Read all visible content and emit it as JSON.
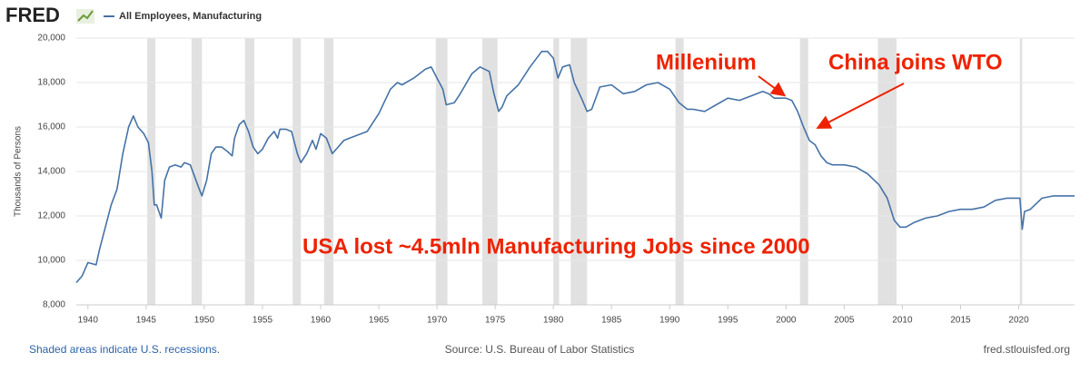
{
  "chart_data": {
    "type": "line",
    "logo": "FRED",
    "y_label": "Thousands of Persons",
    "annotations": [
      "Millenium",
      "China joins WTO",
      "USA lost ~4.5mln Manufacturing Jobs since 2000"
    ],
    "footer_left": "Shaded areas indicate U.S. recessions.",
    "footer_center": "Source: U.S. Bureau of Labor Statistics",
    "footer_right": "fred.stlouisfed.org",
    "xlim": [
      1939,
      2024.8
    ],
    "xticks": [
      1940,
      1945,
      1950,
      1955,
      1960,
      1965,
      1970,
      1975,
      1980,
      1985,
      1990,
      1995,
      2000,
      2005,
      2010,
      2015,
      2020
    ],
    "ylim": [
      8000,
      20000
    ],
    "yticks": [
      {
        "value": 8000,
        "label": "8,000"
      },
      {
        "value": 10000,
        "label": "10,000"
      },
      {
        "value": 12000,
        "label": "12,000"
      },
      {
        "value": 14000,
        "label": "14,000"
      },
      {
        "value": 16000,
        "label": "16,000"
      },
      {
        "value": 18000,
        "label": "18,000"
      },
      {
        "value": 20000,
        "label": "20,000"
      }
    ],
    "grid": true,
    "recession_color": "#e1e1e1",
    "recessions": [
      [
        1945.1,
        1945.8
      ],
      [
        1948.9,
        1949.8
      ],
      [
        1953.5,
        1954.3
      ],
      [
        1957.6,
        1958.3
      ],
      [
        1960.3,
        1961.1
      ],
      [
        1969.9,
        1970.9
      ],
      [
        1973.9,
        1975.2
      ],
      [
        1980.0,
        1980.5
      ],
      [
        1981.5,
        1982.9
      ],
      [
        1990.5,
        1991.2
      ],
      [
        2001.2,
        2001.9
      ],
      [
        2007.9,
        2009.5
      ],
      [
        2020.1,
        2020.3
      ]
    ],
    "x": [
      1939.0,
      1939.5,
      1940,
      1940.7,
      1941,
      1941.5,
      1942,
      1942.5,
      1943,
      1943.5,
      1943.9,
      1944.3,
      1944.8,
      1945.2,
      1945.5,
      1945.7,
      1945.9,
      1946.3,
      1946.6,
      1947,
      1947.5,
      1948,
      1948.3,
      1948.8,
      1949.5,
      1949.8,
      1950.2,
      1950.6,
      1951,
      1951.5,
      1952,
      1952.4,
      1952.6,
      1953,
      1953.4,
      1953.8,
      1954.2,
      1954.6,
      1955,
      1955.5,
      1956,
      1956.3,
      1956.5,
      1957,
      1957.5,
      1958,
      1958.3,
      1958.8,
      1959.3,
      1959.6,
      1960,
      1960.5,
      1961,
      1961.5,
      1962,
      1963,
      1964,
      1965,
      1966,
      1966.6,
      1967,
      1968,
      1969,
      1969.5,
      1970,
      1970.5,
      1970.8,
      1971.5,
      1972,
      1973,
      1973.7,
      1974.5,
      1974.9,
      1975.3,
      1975.6,
      1976,
      1977,
      1978,
      1979,
      1979.5,
      1980,
      1980.4,
      1980.8,
      1981.4,
      1981.8,
      1982.5,
      1982.9,
      1983.3,
      1984,
      1985,
      1986,
      1987,
      1988,
      1989,
      1990,
      1990.8,
      1991.5,
      1992,
      1993,
      1994,
      1995,
      1996,
      1997,
      1998,
      1998.5,
      1999,
      2000,
      2000.5,
      2001,
      2001.5,
      2002,
      2002.5,
      2003,
      2003.5,
      2004,
      2005,
      2006,
      2007,
      2008,
      2008.7,
      2009.3,
      2009.8,
      2010.3,
      2011,
      2012,
      2013,
      2014,
      2015,
      2016,
      2017,
      2018,
      2019,
      2020.1,
      2020.3,
      2020.5,
      2021,
      2022,
      2023,
      2024.8
    ],
    "series": [
      {
        "name": "All Employees, Manufacturing",
        "color": "#4572a7",
        "values": [
          9000,
          9300,
          9900,
          9800,
          10500,
          11500,
          12500,
          13200,
          14800,
          16000,
          16500,
          16000,
          15700,
          15300,
          14000,
          12500,
          12500,
          11900,
          13600,
          14200,
          14300,
          14200,
          14400,
          14300,
          13300,
          12900,
          13600,
          14800,
          15100,
          15100,
          14900,
          14700,
          15500,
          16100,
          16300,
          15800,
          15100,
          14800,
          15000,
          15500,
          15800,
          15500,
          15900,
          15900,
          15800,
          14800,
          14400,
          14800,
          15400,
          15000,
          15700,
          15500,
          14800,
          15100,
          15400,
          15600,
          15800,
          16600,
          17700,
          18000,
          17900,
          18200,
          18600,
          18700,
          18200,
          17700,
          17000,
          17100,
          17500,
          18400,
          18700,
          18500,
          17500,
          16700,
          16900,
          17400,
          17900,
          18700,
          19400,
          19400,
          19100,
          18200,
          18700,
          18800,
          18000,
          17200,
          16700,
          16800,
          17800,
          17900,
          17500,
          17600,
          17900,
          18000,
          17700,
          17100,
          16800,
          16800,
          16700,
          17000,
          17300,
          17200,
          17400,
          17600,
          17500,
          17300,
          17300,
          17200,
          16700,
          16000,
          15400,
          15200,
          14700,
          14400,
          14300,
          14300,
          14200,
          13900,
          13400,
          12800,
          11800,
          11500,
          11500,
          11700,
          11900,
          12000,
          12200,
          12300,
          12300,
          12400,
          12700,
          12800,
          12800,
          11400,
          12200,
          12300,
          12800,
          12900,
          12900
        ]
      }
    ]
  }
}
